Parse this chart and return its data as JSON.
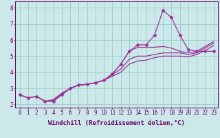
{
  "xlabel": "Windchill (Refroidissement éolien,°C)",
  "background_color": "#cce8e8",
  "line_color": "#993399",
  "grid_color": "#99cccc",
  "axis_color": "#660066",
  "text_color": "#660066",
  "xlim": [
    -0.5,
    23.5
  ],
  "ylim": [
    1.8,
    8.4
  ],
  "xticks": [
    0,
    1,
    2,
    3,
    4,
    5,
    6,
    7,
    8,
    9,
    10,
    11,
    12,
    13,
    14,
    15,
    16,
    17,
    18,
    19,
    20,
    21,
    22,
    23
  ],
  "yticks": [
    2,
    3,
    4,
    5,
    6,
    7,
    8
  ],
  "series": [
    [
      2.6,
      2.4,
      2.5,
      2.2,
      2.2,
      2.6,
      3.0,
      3.2,
      3.25,
      3.35,
      3.5,
      3.9,
      4.5,
      5.3,
      5.7,
      5.7,
      6.3,
      7.85,
      7.4,
      6.3,
      5.4,
      5.3,
      5.3,
      5.3
    ],
    [
      2.6,
      2.4,
      2.5,
      2.2,
      2.2,
      2.6,
      3.0,
      3.2,
      3.25,
      3.35,
      3.5,
      3.9,
      4.5,
      5.3,
      5.55,
      5.55,
      5.55,
      5.6,
      5.5,
      5.3,
      5.2,
      5.3,
      5.6,
      5.9
    ],
    [
      2.6,
      2.4,
      2.5,
      2.2,
      2.25,
      2.65,
      3.0,
      3.2,
      3.25,
      3.35,
      3.5,
      3.85,
      4.2,
      4.8,
      5.0,
      5.0,
      5.1,
      5.2,
      5.2,
      5.2,
      5.1,
      5.2,
      5.5,
      5.8
    ],
    [
      2.6,
      2.4,
      2.5,
      2.2,
      2.3,
      2.7,
      3.0,
      3.2,
      3.25,
      3.35,
      3.5,
      3.75,
      4.0,
      4.5,
      4.7,
      4.75,
      4.9,
      5.0,
      5.0,
      5.0,
      4.95,
      5.1,
      5.35,
      5.65
    ]
  ],
  "marker": "D",
  "markersize": 2.5,
  "linewidth": 0.9,
  "tick_fontsize": 5.5,
  "label_fontsize": 6.5
}
